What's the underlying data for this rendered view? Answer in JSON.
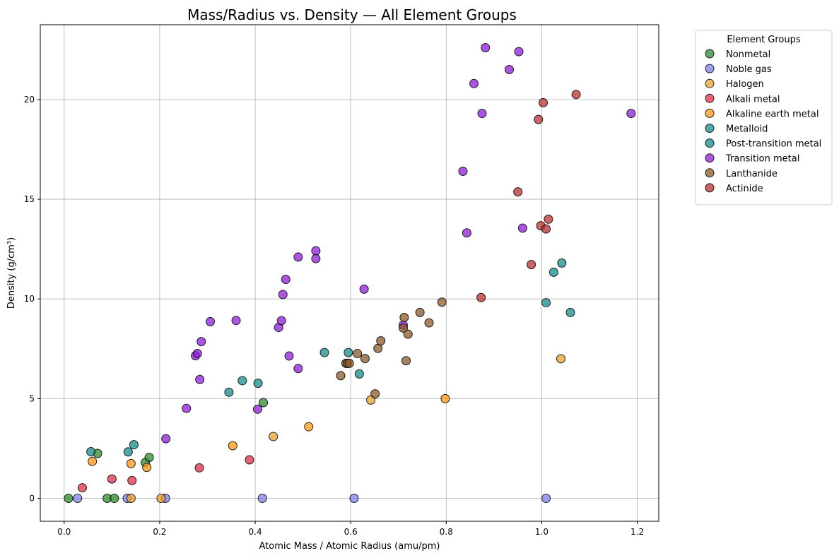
{
  "chart_data": {
    "type": "scatter",
    "title": "Mass/Radius vs. Density — All Element Groups",
    "xlabel": "Atomic Mass / Atomic Radius (amu/pm)",
    "ylabel": "Density (g/cm³)",
    "xlim": [
      -0.05,
      1.245
    ],
    "ylim": [
      -1.15,
      23.75
    ],
    "xticks": [
      0.0,
      0.2,
      0.4,
      0.6,
      0.8,
      1.0,
      1.2
    ],
    "xtick_labels": [
      "0.0",
      "0.2",
      "0.4",
      "0.6",
      "0.8",
      "1.0",
      "1.2"
    ],
    "yticks": [
      0,
      5,
      10,
      15,
      20
    ],
    "ytick_labels": [
      "0",
      "5",
      "10",
      "15",
      "20"
    ],
    "grid": true,
    "legend": {
      "title": "Element Groups",
      "placement": "outside top-right"
    },
    "series": [
      {
        "name": "Nonmetal",
        "color": "#2e8b2e",
        "points": [
          [
            0.009,
            0
          ],
          [
            0.09,
            0
          ],
          [
            0.105,
            0
          ],
          [
            0.07,
            2.25
          ],
          [
            0.17,
            1.8
          ],
          [
            0.178,
            2.05
          ],
          [
            0.417,
            4.8
          ]
        ]
      },
      {
        "name": "Noble gas",
        "color": "#8080ee",
        "points": [
          [
            0.028,
            0
          ],
          [
            0.132,
            0
          ],
          [
            0.212,
            0
          ],
          [
            0.415,
            0
          ],
          [
            0.607,
            0
          ],
          [
            1.009,
            0
          ]
        ]
      },
      {
        "name": "Halogen",
        "color": "#e8a430",
        "points": [
          [
            0.14,
            0
          ],
          [
            0.203,
            0
          ],
          [
            0.438,
            3.1
          ],
          [
            0.642,
            4.93
          ],
          [
            1.04,
            7.0
          ]
        ]
      },
      {
        "name": "Alkali metal",
        "color": "#dc2e4a",
        "points": [
          [
            0.038,
            0.53
          ],
          [
            0.1,
            0.97
          ],
          [
            0.142,
            0.89
          ],
          [
            0.283,
            1.53
          ],
          [
            0.388,
            1.93
          ]
        ]
      },
      {
        "name": "Alkaline earth metal",
        "color": "#ff9810",
        "points": [
          [
            0.059,
            1.85
          ],
          [
            0.14,
            1.74
          ],
          [
            0.173,
            1.55
          ],
          [
            0.353,
            2.64
          ],
          [
            0.512,
            3.59
          ],
          [
            0.798,
            5.0
          ]
        ]
      },
      {
        "name": "Metalloid",
        "color": "#158b8b",
        "points": [
          [
            0.056,
            2.34
          ],
          [
            0.134,
            2.33
          ],
          [
            0.146,
            2.69
          ],
          [
            0.345,
            5.32
          ],
          [
            0.373,
            5.9
          ],
          [
            0.406,
            5.77
          ]
        ]
      },
      {
        "name": "Post-transition metal",
        "color": "#158b8b",
        "points": [
          [
            0.545,
            7.31
          ],
          [
            0.595,
            7.31
          ],
          [
            0.618,
            6.24
          ],
          [
            1.009,
            9.81
          ],
          [
            1.025,
            11.34
          ],
          [
            1.042,
            11.8
          ],
          [
            1.06,
            9.32
          ]
        ]
      },
      {
        "name": "Transition metal",
        "color": "#8e1ed6",
        "points": [
          [
            0.213,
            2.99
          ],
          [
            0.256,
            4.51
          ],
          [
            0.275,
            7.15
          ],
          [
            0.279,
            7.26
          ],
          [
            0.284,
            5.96
          ],
          [
            0.287,
            7.86
          ],
          [
            0.306,
            8.86
          ],
          [
            0.36,
            8.92
          ],
          [
            0.405,
            4.47
          ],
          [
            0.449,
            8.57
          ],
          [
            0.455,
            8.91
          ],
          [
            0.458,
            10.22
          ],
          [
            0.464,
            10.98
          ],
          [
            0.471,
            7.14
          ],
          [
            0.49,
            6.51
          ],
          [
            0.49,
            12.1
          ],
          [
            0.527,
            12.41
          ],
          [
            0.527,
            12.02
          ],
          [
            0.628,
            10.49
          ],
          [
            0.71,
            8.69
          ],
          [
            0.835,
            16.4
          ],
          [
            0.843,
            13.31
          ],
          [
            0.858,
            20.8
          ],
          [
            0.875,
            19.3
          ],
          [
            0.882,
            22.6
          ],
          [
            0.932,
            21.5
          ],
          [
            0.952,
            22.4
          ],
          [
            0.96,
            13.55
          ],
          [
            1.187,
            19.3
          ]
        ]
      },
      {
        "name": "Lanthanide",
        "color": "#8b5a2b",
        "points": [
          [
            0.579,
            6.15
          ],
          [
            0.59,
            6.77
          ],
          [
            0.593,
            6.77
          ],
          [
            0.597,
            6.77
          ],
          [
            0.614,
            7.26
          ],
          [
            0.63,
            7.01
          ],
          [
            0.651,
            5.24
          ],
          [
            0.657,
            7.52
          ],
          [
            0.663,
            7.9
          ],
          [
            0.71,
            8.54
          ],
          [
            0.712,
            9.07
          ],
          [
            0.716,
            6.9
          ],
          [
            0.72,
            8.23
          ],
          [
            0.745,
            9.32
          ],
          [
            0.764,
            8.8
          ],
          [
            0.791,
            9.84
          ]
        ]
      },
      {
        "name": "Actinide",
        "color": "#b83030",
        "points": [
          [
            0.873,
            10.07
          ],
          [
            0.95,
            15.37
          ],
          [
            0.978,
            11.72
          ],
          [
            0.993,
            19.0
          ],
          [
            0.998,
            13.67
          ],
          [
            1.003,
            19.84
          ],
          [
            1.009,
            13.51
          ],
          [
            1.014,
            14.0
          ],
          [
            1.072,
            20.25
          ]
        ]
      }
    ]
  }
}
